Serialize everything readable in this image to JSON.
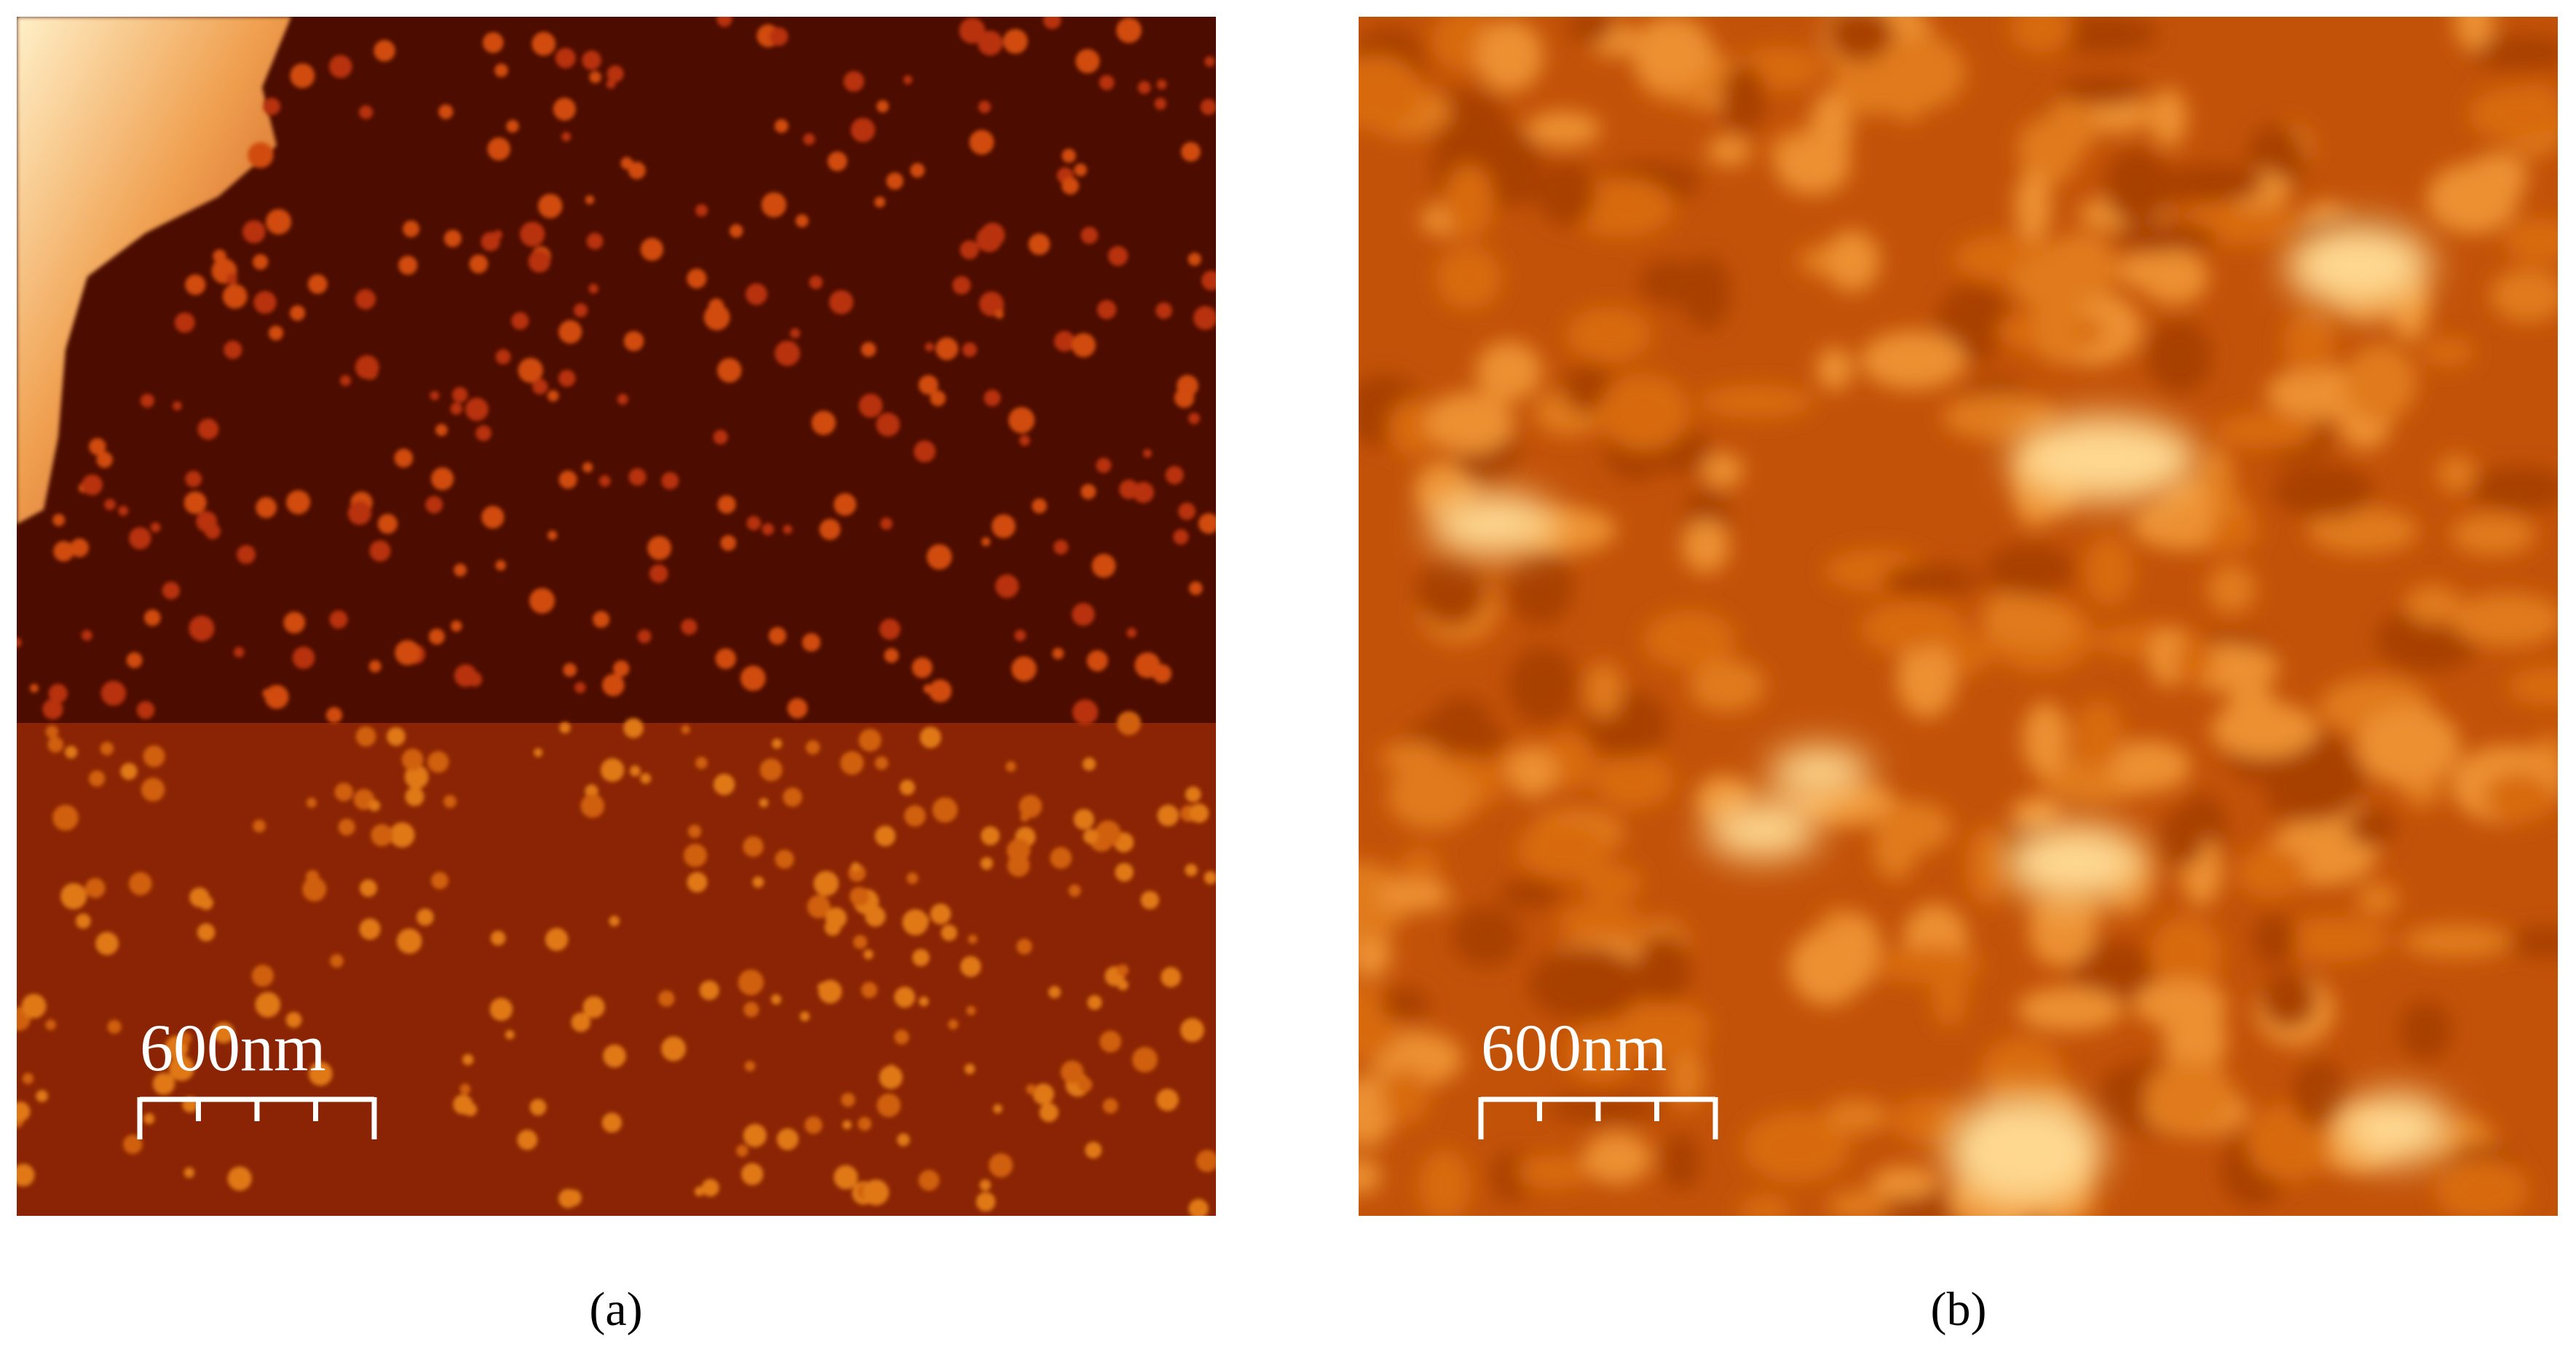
{
  "panels": [
    {
      "scale_bar": "600nm",
      "label": "(a)"
    },
    {
      "scale_bar": "600nm",
      "label": "(b)"
    }
  ]
}
